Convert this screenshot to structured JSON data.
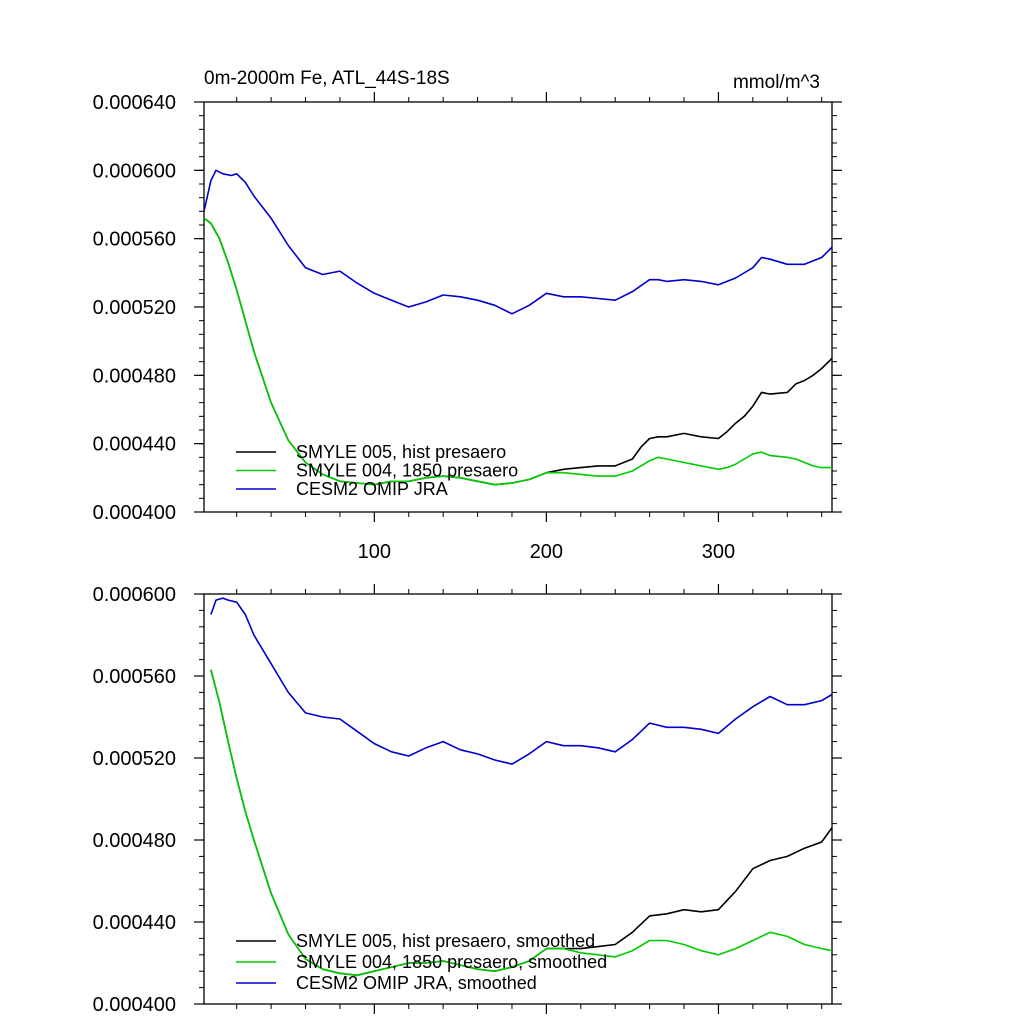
{
  "chart_data": [
    {
      "type": "line",
      "title": "0m-2000m Fe, ATL_44S-18S",
      "units": "mmol/m^3",
      "xlim": [
        1,
        366
      ],
      "ylim": [
        0.0004,
        0.00064
      ],
      "x_ticks": [
        100,
        200,
        300
      ],
      "y_ticks": [
        "0.000400",
        "0.000440",
        "0.000480",
        "0.000520",
        "0.000560",
        "0.000600",
        "0.000640"
      ],
      "series": [
        {
          "name": "SMYLE 005, hist presaero",
          "color": "#000000",
          "x": [
            1,
            5,
            10,
            15,
            20,
            25,
            30,
            40,
            50,
            60,
            70,
            80,
            90,
            100,
            110,
            120,
            130,
            140,
            150,
            160,
            170,
            180,
            190,
            200,
            210,
            220,
            230,
            240,
            250,
            255,
            260,
            265,
            270,
            280,
            285,
            290,
            300,
            305,
            310,
            315,
            320,
            325,
            330,
            340,
            345,
            350,
            355,
            360,
            366
          ],
          "values": [
            0.000572,
            0.000569,
            0.00056,
            0.000546,
            0.00053,
            0.000512,
            0.000494,
            0.000464,
            0.000442,
            0.000429,
            0.000422,
            0.000418,
            0.000417,
            0.000416,
            0.000418,
            0.000418,
            0.00042,
            0.000421,
            0.00042,
            0.000418,
            0.000416,
            0.000417,
            0.000419,
            0.000423,
            0.000425,
            0.000426,
            0.000427,
            0.000427,
            0.000431,
            0.000438,
            0.000443,
            0.000444,
            0.000444,
            0.000446,
            0.000445,
            0.000444,
            0.000443,
            0.000447,
            0.000452,
            0.000456,
            0.000462,
            0.00047,
            0.000469,
            0.00047,
            0.000475,
            0.000477,
            0.00048,
            0.000484,
            0.00049
          ]
        },
        {
          "name": "SMYLE 004, 1850 presaero",
          "color": "#00cc00",
          "x": [
            1,
            5,
            10,
            15,
            20,
            25,
            30,
            40,
            50,
            60,
            70,
            80,
            90,
            100,
            110,
            120,
            130,
            140,
            150,
            160,
            170,
            180,
            190,
            200,
            210,
            220,
            230,
            240,
            250,
            255,
            260,
            265,
            270,
            280,
            285,
            290,
            300,
            305,
            310,
            315,
            320,
            325,
            330,
            340,
            345,
            350,
            355,
            360,
            366
          ],
          "values": [
            0.000572,
            0.000569,
            0.00056,
            0.000546,
            0.00053,
            0.000512,
            0.000494,
            0.000464,
            0.000442,
            0.000429,
            0.000422,
            0.000418,
            0.000417,
            0.000416,
            0.000418,
            0.000418,
            0.00042,
            0.000421,
            0.00042,
            0.000418,
            0.000416,
            0.000417,
            0.000419,
            0.000423,
            0.000423,
            0.000422,
            0.000421,
            0.000421,
            0.000424,
            0.000427,
            0.00043,
            0.000432,
            0.000431,
            0.000429,
            0.000428,
            0.000427,
            0.000425,
            0.000426,
            0.000428,
            0.000431,
            0.000434,
            0.000435,
            0.000433,
            0.000432,
            0.000431,
            0.000429,
            0.000427,
            0.000426,
            0.000426
          ]
        },
        {
          "name": "CESM2 OMIP JRA",
          "color": "#0000cc",
          "x": [
            1,
            5,
            8,
            12,
            17,
            20,
            25,
            30,
            40,
            50,
            60,
            70,
            80,
            90,
            100,
            110,
            120,
            130,
            140,
            150,
            160,
            170,
            180,
            190,
            200,
            210,
            220,
            230,
            240,
            250,
            260,
            265,
            270,
            280,
            290,
            300,
            310,
            320,
            325,
            330,
            340,
            350,
            360,
            366
          ],
          "values": [
            0.000576,
            0.000594,
            0.0006,
            0.000598,
            0.000597,
            0.000598,
            0.000593,
            0.000585,
            0.000572,
            0.000556,
            0.000543,
            0.000539,
            0.000541,
            0.000534,
            0.000528,
            0.000524,
            0.00052,
            0.000523,
            0.000527,
            0.000526,
            0.000524,
            0.000521,
            0.000516,
            0.000521,
            0.000528,
            0.000526,
            0.000526,
            0.000525,
            0.000524,
            0.000529,
            0.000536,
            0.000536,
            0.000535,
            0.000536,
            0.000535,
            0.000533,
            0.000537,
            0.000543,
            0.000549,
            0.000548,
            0.000545,
            0.000545,
            0.000549,
            0.000555
          ]
        }
      ]
    },
    {
      "type": "line",
      "title": "",
      "xlim": [
        1,
        366
      ],
      "ylim": [
        0.0004,
        0.0006
      ],
      "x_ticks": [
        100,
        200,
        300
      ],
      "y_ticks": [
        "0.000400",
        "0.000440",
        "0.000480",
        "0.000520",
        "0.000560",
        "0.000600"
      ],
      "series": [
        {
          "name": "SMYLE 005, hist presaero, smoothed",
          "color": "#000000",
          "x": [
            5,
            10,
            15,
            20,
            25,
            30,
            40,
            50,
            60,
            70,
            80,
            90,
            100,
            110,
            120,
            130,
            140,
            150,
            160,
            170,
            180,
            190,
            200,
            210,
            220,
            230,
            240,
            250,
            260,
            270,
            280,
            290,
            300,
            310,
            320,
            330,
            340,
            350,
            360,
            366
          ],
          "values": [
            0.000563,
            0.000547,
            0.000528,
            0.00051,
            0.000494,
            0.00048,
            0.000454,
            0.000434,
            0.000422,
            0.000417,
            0.000415,
            0.000414,
            0.000416,
            0.000418,
            0.00042,
            0.00042,
            0.000421,
            0.000419,
            0.000417,
            0.000416,
            0.000418,
            0.000421,
            0.000427,
            0.000427,
            0.000427,
            0.000428,
            0.000429,
            0.000435,
            0.000443,
            0.000444,
            0.000446,
            0.000445,
            0.000446,
            0.000455,
            0.000466,
            0.00047,
            0.000472,
            0.000476,
            0.000479,
            0.000486
          ]
        },
        {
          "name": "SMYLE 004, 1850 presaero, smoothed",
          "color": "#00cc00",
          "x": [
            5,
            10,
            15,
            20,
            25,
            30,
            40,
            50,
            60,
            70,
            80,
            90,
            100,
            110,
            120,
            130,
            140,
            150,
            160,
            170,
            180,
            190,
            200,
            210,
            220,
            230,
            240,
            250,
            260,
            270,
            280,
            290,
            300,
            310,
            320,
            330,
            340,
            350,
            360,
            366
          ],
          "values": [
            0.000563,
            0.000547,
            0.000528,
            0.00051,
            0.000494,
            0.00048,
            0.000454,
            0.000434,
            0.000422,
            0.000417,
            0.000415,
            0.000414,
            0.000416,
            0.000418,
            0.00042,
            0.00042,
            0.000421,
            0.000419,
            0.000417,
            0.000416,
            0.000418,
            0.000421,
            0.000427,
            0.000427,
            0.000425,
            0.000424,
            0.000423,
            0.000426,
            0.000431,
            0.000431,
            0.000429,
            0.000426,
            0.000424,
            0.000427,
            0.000431,
            0.000435,
            0.000433,
            0.000429,
            0.000427,
            0.000426
          ]
        },
        {
          "name": "CESM2 OMIP JRA, smoothed",
          "color": "#0000cc",
          "x": [
            5,
            8,
            12,
            15,
            20,
            25,
            30,
            40,
            50,
            60,
            70,
            80,
            90,
            100,
            110,
            120,
            130,
            140,
            150,
            160,
            170,
            180,
            190,
            200,
            210,
            220,
            230,
            240,
            250,
            260,
            270,
            280,
            290,
            300,
            310,
            320,
            330,
            340,
            350,
            360,
            366
          ],
          "values": [
            0.00059,
            0.000597,
            0.000598,
            0.000597,
            0.000596,
            0.00059,
            0.00058,
            0.000566,
            0.000552,
            0.000542,
            0.00054,
            0.000539,
            0.000533,
            0.000527,
            0.000523,
            0.000521,
            0.000525,
            0.000528,
            0.000524,
            0.000522,
            0.000519,
            0.000517,
            0.000522,
            0.000528,
            0.000526,
            0.000526,
            0.000525,
            0.000523,
            0.000529,
            0.000537,
            0.000535,
            0.000535,
            0.000534,
            0.000532,
            0.000539,
            0.000545,
            0.00055,
            0.000546,
            0.000546,
            0.000548,
            0.000551
          ]
        }
      ]
    }
  ]
}
